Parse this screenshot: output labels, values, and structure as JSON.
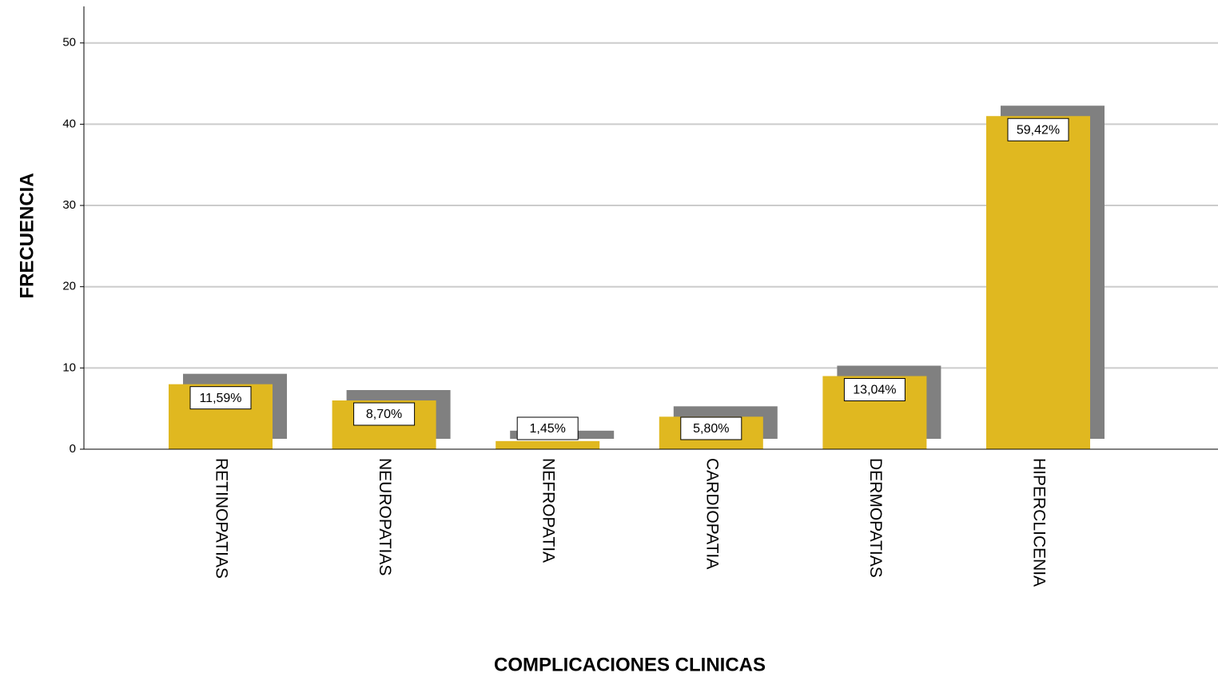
{
  "chart_data": {
    "type": "bar",
    "x_label": "COMPLICACIONES CLINICAS",
    "y_label": "FRECUENCIA",
    "categories": [
      "RETINOPATIAS",
      "NEUROPATIAS",
      "NEFROPATIA",
      "CARDIOPATIA",
      "DERMOPATIAS",
      "HIPERCLICENIA"
    ],
    "values": [
      8,
      6,
      1,
      4,
      9,
      41
    ],
    "percentages": [
      11.59,
      8.7,
      1.45,
      5.8,
      13.04,
      59.42
    ],
    "percentage_labels": [
      "11,59%",
      "8,70%",
      "1,45%",
      "5,80%",
      "13,04%",
      "59,42%"
    ],
    "color": "#e0b820",
    "shadow_color": "#808080",
    "ylim": [
      0,
      54.5
    ],
    "yticks": [
      0,
      10,
      20,
      30,
      40,
      50
    ],
    "grid": true
  }
}
